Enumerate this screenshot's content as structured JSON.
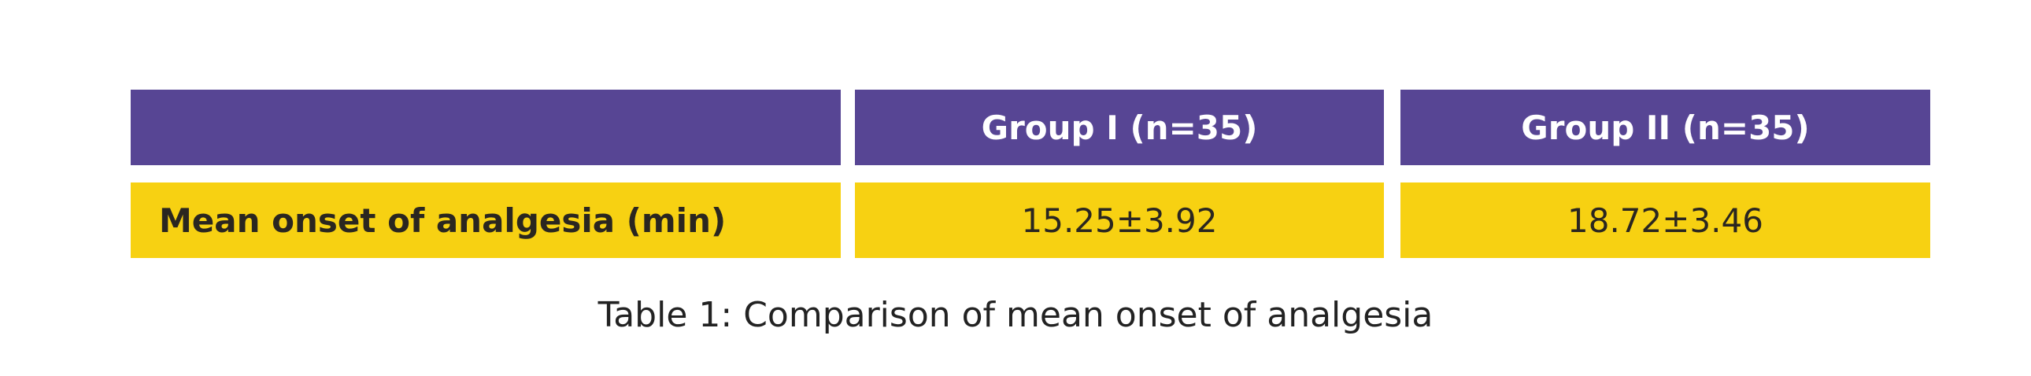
{
  "table": {
    "header": [
      "Group I (n=35)",
      "Group II (n=35)"
    ],
    "rows": [
      [
        "Mean onset of analgesia (min)",
        "15.25±3.92",
        "18.72±3.46"
      ]
    ]
  },
  "caption": "Table 1: Comparison of mean onset of analgesia"
}
